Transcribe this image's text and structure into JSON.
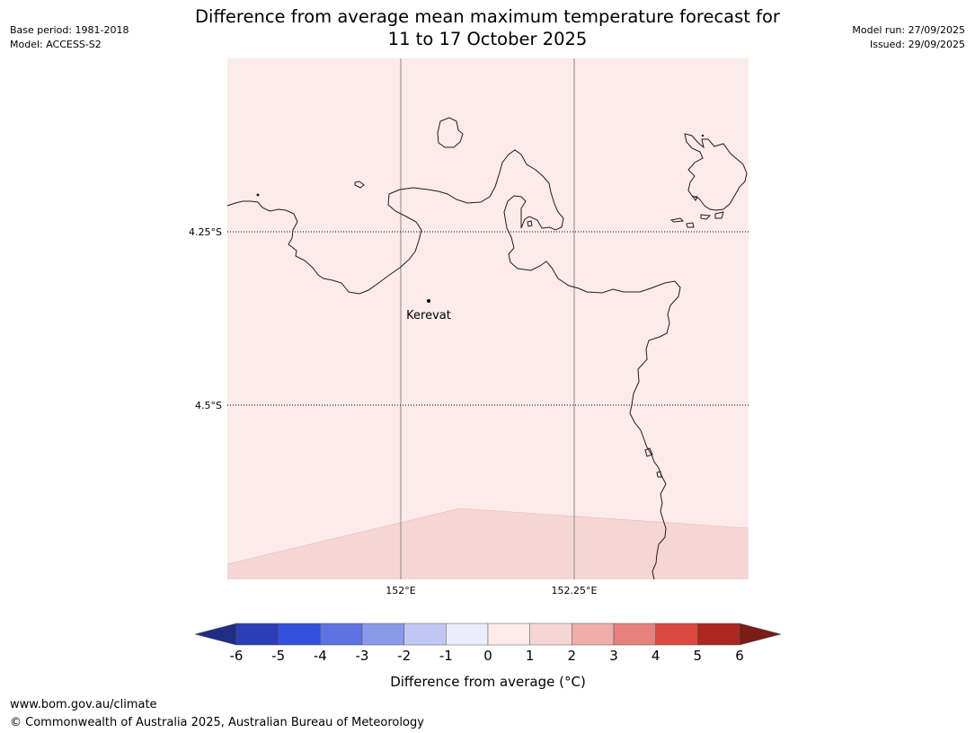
{
  "header": {
    "title_line1": "Difference from average mean maximum temperature forecast for",
    "title_line2": "11 to 17 October 2025",
    "base_period": "Base period: 1981-2018",
    "model": "Model: ACCESS-S2",
    "model_run": "Model run: 27/09/2025",
    "issued": "Issued: 29/09/2025"
  },
  "map": {
    "lat_labels": [
      "4.25°S",
      "4.5°S"
    ],
    "lon_labels": [
      "152°E",
      "152.25°E"
    ],
    "place": "Kerevat",
    "fill_main": "#fcebea",
    "fill_south": "#f6d6d4"
  },
  "colorbar": {
    "ticks": [
      "-6",
      "-5",
      "-4",
      "-3",
      "-2",
      "-1",
      "0",
      "1",
      "2",
      "3",
      "4",
      "5",
      "6"
    ],
    "colors": [
      "#1f2d82",
      "#2a3fb6",
      "#3350dd",
      "#5f72e2",
      "#8b99ea",
      "#c0c7f4",
      "#ebedfb",
      "#fcebea",
      "#f6d6d4",
      "#eeaea9",
      "#e5827b",
      "#dc4a3f",
      "#ab2720",
      "#7a1c17"
    ],
    "label": "Difference from average (°C)"
  },
  "footer": {
    "url": "www.bom.gov.au/climate",
    "copyright": "© Commonwealth of Australia 2025, Australian Bureau of Meteorology"
  }
}
